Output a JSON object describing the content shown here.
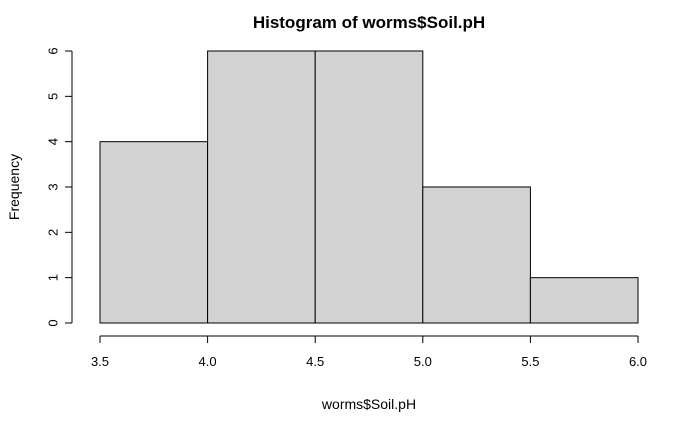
{
  "chart_data": {
    "type": "bar",
    "title": "Histogram of worms$Soil.pH",
    "xlabel": "worms$Soil.pH",
    "ylabel": "Frequency",
    "bins": [
      {
        "from": 3.5,
        "to": 4.0,
        "count": 4
      },
      {
        "from": 4.0,
        "to": 4.5,
        "count": 6
      },
      {
        "from": 4.5,
        "to": 5.0,
        "count": 6
      },
      {
        "from": 5.0,
        "to": 5.5,
        "count": 3
      },
      {
        "from": 5.5,
        "to": 6.0,
        "count": 1
      }
    ],
    "xlim": [
      3.5,
      6.0
    ],
    "ylim": [
      0,
      6
    ],
    "x_ticks": [
      "3.5",
      "4.0",
      "4.5",
      "5.0",
      "5.5",
      "6.0"
    ],
    "y_ticks": [
      "0",
      "1",
      "2",
      "3",
      "4",
      "5",
      "6"
    ],
    "bar_fill": "#d3d3d3",
    "bar_stroke": "#000000",
    "grid": false,
    "legend": "none"
  }
}
